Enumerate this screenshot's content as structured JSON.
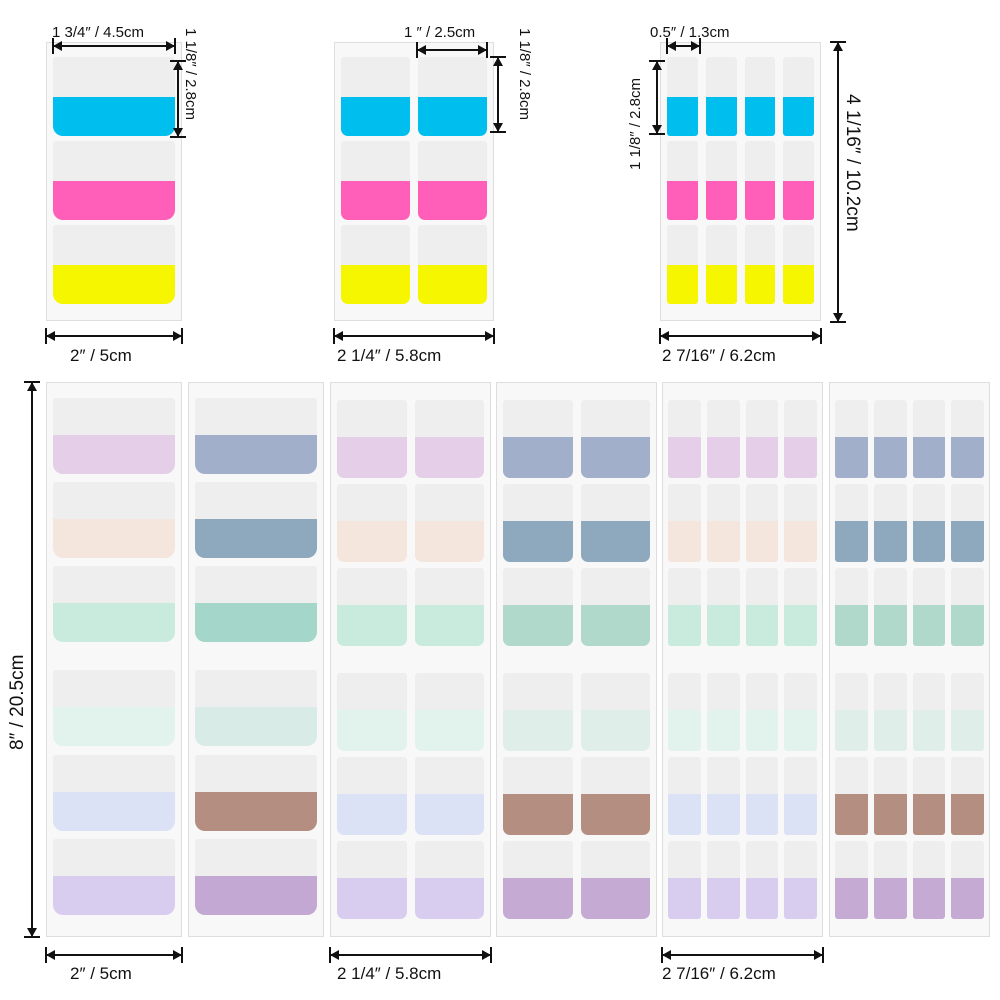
{
  "colors": {
    "neon": [
      "#00bfee",
      "#ff5fb9",
      "#f6f600"
    ],
    "pastel_light": [
      "#e5cfe8",
      "#f4e5dd",
      "#c9ebdd",
      "#e2f3ee",
      "#dbe2f5",
      "#d9cdef"
    ],
    "pastel_dark": [
      "#a2afcb",
      "#8ea9be",
      "#a4d6c9",
      "#d9ebe6",
      "#b48f81",
      "#c3a8d3"
    ],
    "pastel_mid_dark": [
      "#a2afcb",
      "#8ea9be",
      "#b0d8cb",
      "#e0eee9",
      "#b48f81",
      "#c5abd4"
    ],
    "pastel_mid_light": [
      "#e5cfe8",
      "#f4e5dd",
      "#c9ebdd",
      "#e2f3ee",
      "#dbe2f5",
      "#d9cdef"
    ]
  },
  "labels": {
    "top_width_1col": "1 3/4″ / 4.5cm",
    "top_tab_height": "1 1/8″ / 2.8cm",
    "top_width_2col": "1 ″ / 2.5cm",
    "top_width_4col": "0.5″ / 1.3cm",
    "top_sheet_height": "4 1/16″ / 10.2cm",
    "sheet_width_1col": "2″ / 5cm",
    "sheet_width_2col": "2 1/4″ / 5.8cm",
    "sheet_width_4col": "2 7/16″ / 6.2cm",
    "bottom_sheet_height": "8″ / 20.5cm",
    "bottom_width_1col": "2″ / 5cm",
    "bottom_width_2col": "2 1/4″ / 5.8cm",
    "bottom_width_4col": "2 7/16″ / 6.2cm"
  }
}
